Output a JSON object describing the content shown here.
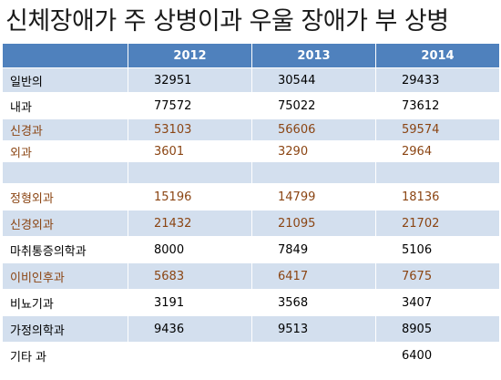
{
  "title": "신체장애가 주 상병이과 우울 장애가 부 상병",
  "colors": {
    "header_bg": "#4f81bd",
    "band_bg": "#d3dfee",
    "brown_text": "#8b4513"
  },
  "table": {
    "headers": [
      "",
      "2012",
      "2013",
      "2014"
    ],
    "rows": [
      {
        "name": "일반의",
        "values": [
          "32951",
          "30544",
          "29433"
        ],
        "color": "black",
        "height": 27
      },
      {
        "name": "내과",
        "values": [
          "77572",
          "75022",
          "73612"
        ],
        "color": "black",
        "height": 29
      },
      {
        "name": "신경과",
        "values": [
          "53103",
          "56606",
          "59574"
        ],
        "color": "brown",
        "height": 24
      },
      {
        "name": "외과",
        "values": [
          "3601",
          "3290",
          "2964"
        ],
        "color": "brown",
        "height": 23
      },
      {
        "name": "",
        "values": [
          "",
          "",
          ""
        ],
        "color": "black",
        "height": 24
      },
      {
        "name": "정형외과",
        "values": [
          "15196",
          "14799",
          "18136"
        ],
        "color": "brown",
        "height": 29
      },
      {
        "name": "신경외과",
        "values": [
          "21432",
          "21095",
          "21702"
        ],
        "color": "brown",
        "height": 29
      },
      {
        "name": "마취통증의학과",
        "values": [
          "8000",
          "7849",
          "5106"
        ],
        "color": "black",
        "height": 29
      },
      {
        "name": "이비인후과",
        "values": [
          "5683",
          "6417",
          "7675"
        ],
        "color": "brown",
        "height": 29
      },
      {
        "name": "비뇨기과",
        "values": [
          "3191",
          "3568",
          "3407"
        ],
        "color": "black",
        "height": 29
      },
      {
        "name": "가정의학과",
        "values": [
          "9436",
          "9513",
          "8905"
        ],
        "color": "black",
        "height": 29
      },
      {
        "name": "기타 과",
        "values": [
          "",
          "",
          "6400"
        ],
        "color": "black",
        "height": 29
      }
    ]
  }
}
